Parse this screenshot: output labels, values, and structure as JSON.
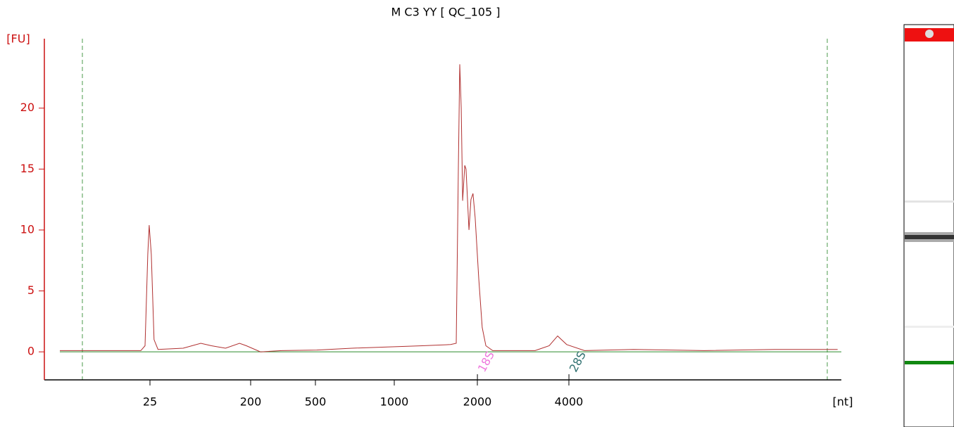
{
  "chart_data": {
    "type": "line",
    "title": "M C3 YY  [ QC_105 ]",
    "ylabel": "[FU]",
    "xlabel": "[nt]",
    "x": [
      3.9,
      10,
      20.7,
      22.6,
      23.9,
      24.6,
      25.7,
      27.2,
      29.5,
      49.6,
      71.4,
      89,
      119,
      159,
      183,
      230,
      310,
      506,
      690,
      940,
      1265,
      1600,
      1677,
      1707,
      1727,
      1748,
      1769,
      1800,
      1820,
      1865,
      1896,
      1929,
      1964,
      2021,
      2075,
      2133,
      2247,
      3096,
      3445,
      3672,
      3935,
      4500,
      6530,
      11130,
      18970,
      30620
    ],
    "series": [
      {
        "color": "#b03030",
        "values": [
          0.1,
          0.1,
          0.1,
          0.5,
          8,
          10.4,
          8,
          1,
          0.2,
          0.3,
          0.7,
          0.5,
          0.3,
          0.7,
          0.5,
          0,
          0.1,
          0.15,
          0.3,
          0.4,
          0.5,
          0.6,
          0.7,
          15,
          23.6,
          20,
          12.4,
          15.3,
          15,
          10,
          12.5,
          13,
          11,
          6,
          2,
          0.5,
          0.1,
          0.1,
          0.5,
          1.3,
          0.6,
          0.1,
          0.2,
          0.1,
          0.2,
          0.2
        ]
      }
    ],
    "xlim": [
      3.9,
      31500
    ],
    "ylim": [
      -2.3,
      25.7
    ],
    "xticks": [
      25,
      200,
      500,
      1000,
      2000,
      4000
    ],
    "yticks": [
      0,
      5,
      10,
      15,
      20
    ],
    "annotations": [
      {
        "text": "18S",
        "x": 2133,
        "color": "#ee77dd"
      },
      {
        "text": "28S",
        "x": 4266,
        "color": "#2f7070"
      }
    ],
    "axis_color": "#cc1111",
    "baseline_color": "#2e8b2e"
  }
}
